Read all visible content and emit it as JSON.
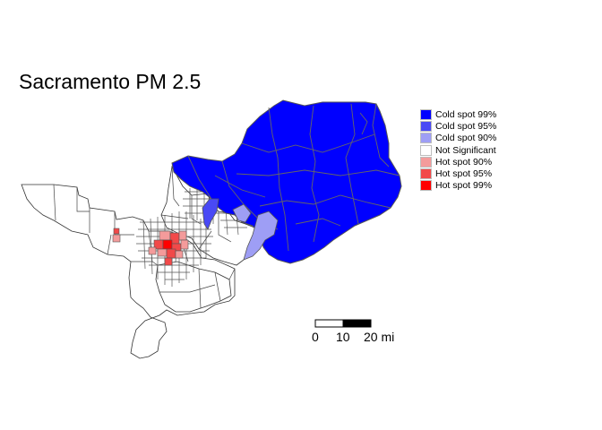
{
  "map": {
    "title": "Sacramento PM 2.5",
    "legend": [
      {
        "label": "Cold spot 99%",
        "color": "#0000ff"
      },
      {
        "label": "Cold spot 95%",
        "color": "#4949f5"
      },
      {
        "label": "Cold spot 90%",
        "color": "#9e9ef5"
      },
      {
        "label": "Not Significant",
        "color": "#ffffff"
      },
      {
        "label": "Hot spot 90%",
        "color": "#f49b9b"
      },
      {
        "label": "Hot spot 95%",
        "color": "#f24949"
      },
      {
        "label": "Hot spot 99%",
        "color": "#ff0000"
      }
    ],
    "scale_bar": {
      "labels": [
        "0",
        "10",
        "20 mi"
      ]
    },
    "colors": {
      "boundary": "#555555",
      "outline": "#333333"
    }
  }
}
